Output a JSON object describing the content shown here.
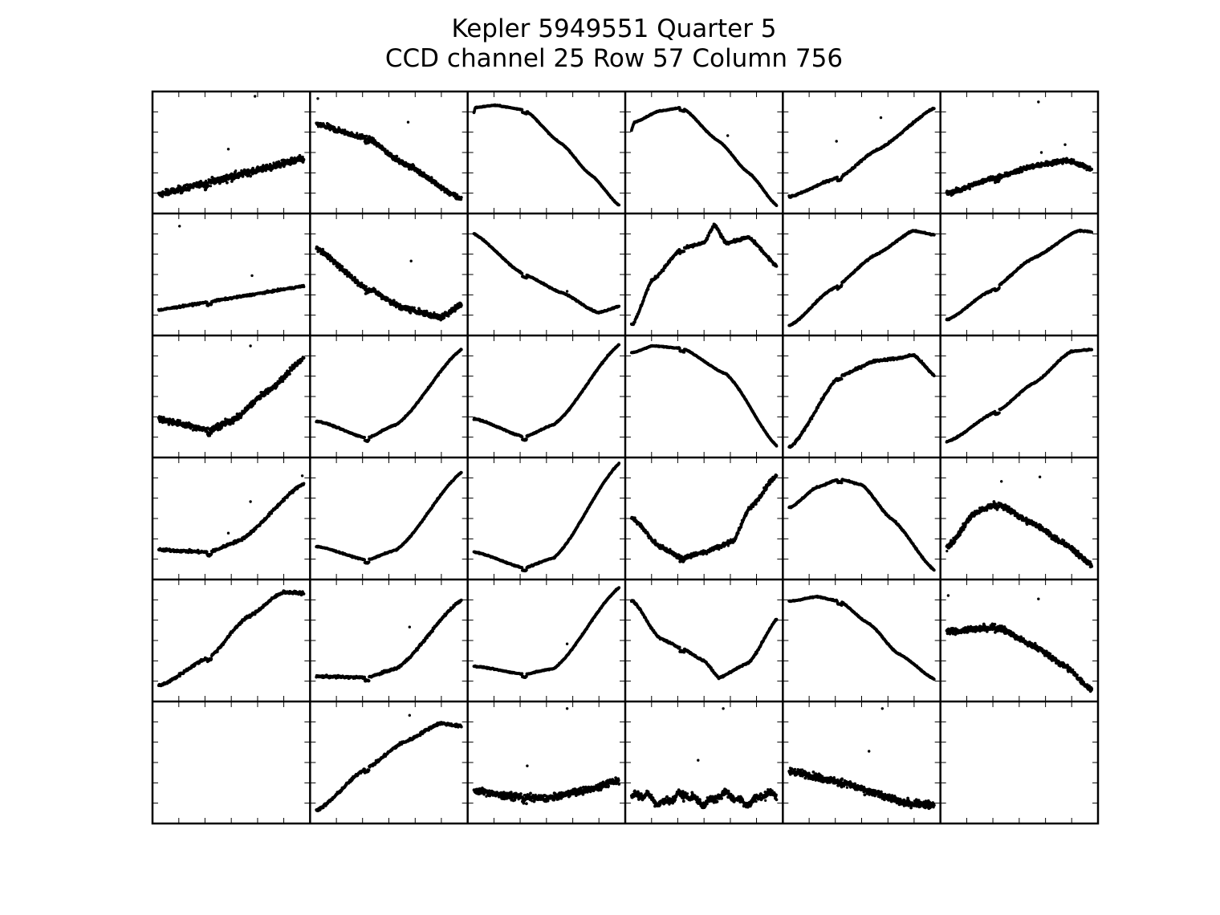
{
  "title": {
    "line1": "Kepler 5949551 Quarter 5",
    "line2": "CCD channel 25 Row 57 Column 756"
  },
  "chart_data": {
    "type": "scatter",
    "layout": "pixel-grid",
    "rows": 6,
    "cols": 6,
    "x_range": [
      0,
      1
    ],
    "y_range": [
      0,
      1
    ],
    "ticks": {
      "x": [
        0.167,
        0.333,
        0.5,
        0.667,
        0.833
      ],
      "y": [
        0.167,
        0.333,
        0.5,
        0.667,
        0.833
      ]
    },
    "tick_labels": false,
    "grid": false,
    "cells": [
      {
        "row": 0,
        "col": 0,
        "shape": "linear",
        "params": [
          0.12,
          0.33
        ],
        "noise": 0.03,
        "break": 0.33,
        "outliers": [
          [
            0.66,
            1.0
          ],
          [
            0.48,
            0.53
          ]
        ]
      },
      {
        "row": 0,
        "col": 1,
        "shape": "smooth",
        "pts": [
          [
            0,
            0.75
          ],
          [
            0.35,
            0.63
          ],
          [
            0.6,
            0.4
          ],
          [
            1,
            0.08
          ]
        ],
        "noise": 0.022,
        "break": 0.35,
        "outliers": [
          [
            0.63,
            0.77
          ],
          [
            0.02,
            0.98
          ]
        ]
      },
      {
        "row": 0,
        "col": 2,
        "shape": "smooth",
        "pts": [
          [
            0,
            0.81
          ],
          [
            0.02,
            0.9
          ],
          [
            0.15,
            0.92
          ],
          [
            0.35,
            0.88
          ],
          [
            0.6,
            0.58
          ],
          [
            0.8,
            0.3
          ],
          [
            1,
            0.02
          ]
        ],
        "noise": 0.004,
        "break": 0.35
      },
      {
        "row": 0,
        "col": 3,
        "shape": "smooth",
        "pts": [
          [
            0,
            0.67
          ],
          [
            0.03,
            0.77
          ],
          [
            0.2,
            0.87
          ],
          [
            0.35,
            0.9
          ],
          [
            0.6,
            0.6
          ],
          [
            0.8,
            0.32
          ],
          [
            1,
            0.02
          ]
        ],
        "noise": 0.004,
        "break": 0.35,
        "outliers": [
          [
            0.66,
            0.65
          ]
        ]
      },
      {
        "row": 0,
        "col": 4,
        "shape": "smooth",
        "pts": [
          [
            0,
            0.1
          ],
          [
            0.35,
            0.28
          ],
          [
            0.6,
            0.52
          ],
          [
            1,
            0.9
          ]
        ],
        "noise": 0.008,
        "break": 0.35,
        "outliers": [
          [
            0.33,
            0.6
          ],
          [
            0.63,
            0.81
          ]
        ]
      },
      {
        "row": 0,
        "col": 5,
        "shape": "smooth",
        "pts": [
          [
            0,
            0.13
          ],
          [
            0.35,
            0.28
          ],
          [
            0.6,
            0.38
          ],
          [
            0.82,
            0.43
          ],
          [
            1,
            0.35
          ]
        ],
        "noise": 0.02,
        "break": 0.35,
        "outliers": [
          [
            0.63,
            0.95
          ],
          [
            0.65,
            0.5
          ],
          [
            0.81,
            0.57
          ]
        ]
      },
      {
        "row": 1,
        "col": 0,
        "shape": "linear",
        "params": [
          0.18,
          0.22
        ],
        "noise": 0.008,
        "break": 0.35,
        "outliers": [
          [
            0.64,
            0.49
          ],
          [
            0.15,
            0.93
          ]
        ]
      },
      {
        "row": 1,
        "col": 1,
        "shape": "smooth",
        "pts": [
          [
            0,
            0.74
          ],
          [
            0.35,
            0.38
          ],
          [
            0.6,
            0.2
          ],
          [
            0.85,
            0.12
          ],
          [
            1,
            0.24
          ]
        ],
        "noise": 0.024,
        "break": 0.35,
        "outliers": [
          [
            0.65,
            0.62
          ]
        ]
      },
      {
        "row": 1,
        "col": 2,
        "shape": "smooth",
        "pts": [
          [
            0,
            0.87
          ],
          [
            0.35,
            0.5
          ],
          [
            0.6,
            0.34
          ],
          [
            0.85,
            0.16
          ],
          [
            1,
            0.22
          ]
        ],
        "noise": 0.006,
        "break": 0.35,
        "outliers": [
          [
            0.64,
            0.35
          ]
        ]
      },
      {
        "row": 1,
        "col": 3,
        "shape": "smooth",
        "pts": [
          [
            0.02,
            0.06
          ],
          [
            0.15,
            0.45
          ],
          [
            0.35,
            0.73
          ],
          [
            0.5,
            0.78
          ],
          [
            0.57,
            0.94
          ],
          [
            0.65,
            0.78
          ],
          [
            0.8,
            0.83
          ],
          [
            1,
            0.57
          ]
        ],
        "noise": 0.012,
        "break": 0.35
      },
      {
        "row": 1,
        "col": 4,
        "shape": "smooth",
        "pts": [
          [
            0.02,
            0.05
          ],
          [
            0.3,
            0.37
          ],
          [
            0.6,
            0.68
          ],
          [
            0.85,
            0.89
          ],
          [
            1,
            0.85
          ]
        ],
        "noise": 0.006,
        "break": 0.35
      },
      {
        "row": 1,
        "col": 5,
        "shape": "smooth",
        "pts": [
          [
            0.02,
            0.1
          ],
          [
            0.3,
            0.35
          ],
          [
            0.6,
            0.65
          ],
          [
            0.9,
            0.89
          ],
          [
            1,
            0.88
          ]
        ],
        "noise": 0.006,
        "break": 0.35
      },
      {
        "row": 2,
        "col": 0,
        "shape": "smooth",
        "pts": [
          [
            0,
            0.3
          ],
          [
            0.35,
            0.2
          ],
          [
            0.5,
            0.28
          ],
          [
            0.75,
            0.55
          ],
          [
            1,
            0.85
          ]
        ],
        "noise": 0.025,
        "break": 0.35,
        "outliers": [
          [
            0.63,
            0.95
          ],
          [
            0.46,
            0.3
          ]
        ]
      },
      {
        "row": 2,
        "col": 1,
        "shape": "smooth",
        "pts": [
          [
            0.02,
            0.28
          ],
          [
            0.35,
            0.13
          ],
          [
            0.55,
            0.25
          ],
          [
            1,
            0.93
          ]
        ],
        "noise": 0.006,
        "break": 0.35
      },
      {
        "row": 2,
        "col": 2,
        "shape": "smooth",
        "pts": [
          [
            0.02,
            0.3
          ],
          [
            0.35,
            0.14
          ],
          [
            0.55,
            0.25
          ],
          [
            1,
            0.97
          ]
        ],
        "noise": 0.006,
        "break": 0.35
      },
      {
        "row": 2,
        "col": 3,
        "shape": "smooth",
        "pts": [
          [
            0.02,
            0.89
          ],
          [
            0.15,
            0.95
          ],
          [
            0.35,
            0.93
          ],
          [
            0.65,
            0.7
          ],
          [
            1,
            0.05
          ]
        ],
        "noise": 0.004,
        "break": 0.35
      },
      {
        "row": 2,
        "col": 4,
        "shape": "smooth",
        "pts": [
          [
            0.02,
            0.05
          ],
          [
            0.35,
            0.68
          ],
          [
            0.6,
            0.82
          ],
          [
            0.75,
            0.84
          ],
          [
            0.85,
            0.87
          ],
          [
            1,
            0.68
          ]
        ],
        "noise": 0.01,
        "break": 0.35
      },
      {
        "row": 2,
        "col": 5,
        "shape": "smooth",
        "pts": [
          [
            0.02,
            0.1
          ],
          [
            0.35,
            0.37
          ],
          [
            0.6,
            0.62
          ],
          [
            0.85,
            0.9
          ],
          [
            1,
            0.92
          ]
        ],
        "noise": 0.006,
        "break": 0.35
      },
      {
        "row": 3,
        "col": 0,
        "shape": "smooth",
        "pts": [
          [
            0.02,
            0.22
          ],
          [
            0.35,
            0.2
          ],
          [
            0.55,
            0.3
          ],
          [
            1,
            0.82
          ]
        ],
        "noise": 0.012,
        "break": 0.35,
        "outliers": [
          [
            0.63,
            0.65
          ],
          [
            0.48,
            0.37
          ],
          [
            0.98,
            0.88
          ]
        ]
      },
      {
        "row": 3,
        "col": 1,
        "shape": "smooth",
        "pts": [
          [
            0.02,
            0.25
          ],
          [
            0.35,
            0.13
          ],
          [
            0.55,
            0.22
          ],
          [
            1,
            0.92
          ]
        ],
        "noise": 0.005,
        "break": 0.35
      },
      {
        "row": 3,
        "col": 2,
        "shape": "smooth",
        "pts": [
          [
            0.02,
            0.2
          ],
          [
            0.35,
            0.06
          ],
          [
            0.55,
            0.15
          ],
          [
            1,
            1.0
          ]
        ],
        "noise": 0.005,
        "break": 0.35
      },
      {
        "row": 3,
        "col": 3,
        "shape": "smooth",
        "pts": [
          [
            0.02,
            0.5
          ],
          [
            0.2,
            0.25
          ],
          [
            0.35,
            0.15
          ],
          [
            0.5,
            0.2
          ],
          [
            0.6,
            0.25
          ],
          [
            0.7,
            0.3
          ],
          [
            0.8,
            0.58
          ],
          [
            1,
            0.9
          ]
        ],
        "noise": 0.018,
        "break": 0.35
      },
      {
        "row": 3,
        "col": 4,
        "shape": "smooth",
        "pts": [
          [
            0.02,
            0.6
          ],
          [
            0.2,
            0.78
          ],
          [
            0.35,
            0.85
          ],
          [
            0.5,
            0.8
          ],
          [
            0.7,
            0.5
          ],
          [
            1,
            0.03
          ]
        ],
        "noise": 0.006,
        "break": 0.35
      },
      {
        "row": 3,
        "col": 5,
        "shape": "smooth",
        "pts": [
          [
            0.02,
            0.25
          ],
          [
            0.2,
            0.55
          ],
          [
            0.35,
            0.63
          ],
          [
            0.6,
            0.45
          ],
          [
            0.8,
            0.28
          ],
          [
            1,
            0.08
          ]
        ],
        "noise": 0.025,
        "break": 0.35,
        "outliers": [
          [
            0.64,
            0.87
          ],
          [
            0.38,
            0.83
          ]
        ]
      },
      {
        "row": 4,
        "col": 0,
        "shape": "smooth",
        "pts": [
          [
            0.02,
            0.1
          ],
          [
            0.35,
            0.35
          ],
          [
            0.6,
            0.7
          ],
          [
            0.85,
            0.93
          ],
          [
            1,
            0.92
          ]
        ],
        "noise": 0.012,
        "break": 0.35
      },
      {
        "row": 4,
        "col": 1,
        "shape": "smooth",
        "pts": [
          [
            0.02,
            0.18
          ],
          [
            0.35,
            0.17
          ],
          [
            0.55,
            0.25
          ],
          [
            1,
            0.87
          ]
        ],
        "noise": 0.01,
        "break": 0.35,
        "outliers": [
          [
            0.64,
            0.62
          ]
        ]
      },
      {
        "row": 4,
        "col": 2,
        "shape": "smooth",
        "pts": [
          [
            0.02,
            0.27
          ],
          [
            0.35,
            0.2
          ],
          [
            0.55,
            0.25
          ],
          [
            1,
            0.98
          ]
        ],
        "noise": 0.005,
        "break": 0.35,
        "outliers": [
          [
            0.64,
            0.47
          ]
        ]
      },
      {
        "row": 4,
        "col": 3,
        "shape": "smooth",
        "pts": [
          [
            0.02,
            0.85
          ],
          [
            0.2,
            0.52
          ],
          [
            0.35,
            0.43
          ],
          [
            0.5,
            0.32
          ],
          [
            0.6,
            0.17
          ],
          [
            0.8,
            0.3
          ],
          [
            1,
            0.7
          ]
        ],
        "noise": 0.008,
        "break": 0.35
      },
      {
        "row": 4,
        "col": 4,
        "shape": "smooth",
        "pts": [
          [
            0.02,
            0.85
          ],
          [
            0.2,
            0.89
          ],
          [
            0.35,
            0.85
          ],
          [
            0.55,
            0.65
          ],
          [
            0.75,
            0.38
          ],
          [
            1,
            0.15
          ]
        ],
        "noise": 0.005,
        "break": 0.35
      },
      {
        "row": 4,
        "col": 5,
        "shape": "smooth",
        "pts": [
          [
            0.02,
            0.58
          ],
          [
            0.35,
            0.62
          ],
          [
            0.6,
            0.45
          ],
          [
            0.8,
            0.28
          ],
          [
            1,
            0.05
          ]
        ],
        "noise": 0.025,
        "break": 0.35,
        "outliers": [
          [
            0.63,
            0.87
          ],
          [
            0.02,
            0.9
          ]
        ]
      },
      {
        "row": 5,
        "col": 0,
        "shape": "empty"
      },
      {
        "row": 5,
        "col": 1,
        "shape": "smooth",
        "pts": [
          [
            0.02,
            0.08
          ],
          [
            0.35,
            0.45
          ],
          [
            0.6,
            0.68
          ],
          [
            0.85,
            0.85
          ],
          [
            1,
            0.82
          ]
        ],
        "noise": 0.012,
        "break": 0.35,
        "outliers": [
          [
            0.64,
            0.92
          ]
        ]
      },
      {
        "row": 5,
        "col": 2,
        "shape": "smooth",
        "pts": [
          [
            0,
            0.25
          ],
          [
            0.25,
            0.2
          ],
          [
            0.5,
            0.18
          ],
          [
            0.75,
            0.25
          ],
          [
            1,
            0.34
          ]
        ],
        "noise": 0.03,
        "break": 0.35,
        "outliers": [
          [
            0.37,
            0.47
          ],
          [
            0.64,
            0.98
          ]
        ]
      },
      {
        "row": 5,
        "col": 3,
        "shape": "wavy",
        "params": [
          0.18,
          0.04
        ],
        "noise": 0.03,
        "break": 0.35,
        "outliers": [
          [
            0.46,
            0.52
          ],
          [
            0.63,
            0.98
          ]
        ]
      },
      {
        "row": 5,
        "col": 4,
        "shape": "smooth",
        "pts": [
          [
            0.02,
            0.42
          ],
          [
            0.35,
            0.33
          ],
          [
            0.6,
            0.22
          ],
          [
            0.8,
            0.14
          ],
          [
            1,
            0.12
          ]
        ],
        "noise": 0.03,
        "break": 0.35,
        "outliers": [
          [
            0.64,
            0.98
          ],
          [
            0.55,
            0.6
          ]
        ]
      },
      {
        "row": 5,
        "col": 5,
        "shape": "empty"
      }
    ]
  }
}
